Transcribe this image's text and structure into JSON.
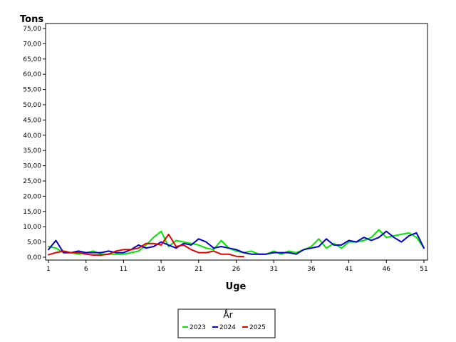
{
  "chart_data": {
    "type": "line",
    "ylabel": "Tons",
    "xlabel": "Uge",
    "ylim": [
      0,
      75
    ],
    "xlim": [
      1,
      51
    ],
    "yticks": [
      "0,00",
      "5,00",
      "10,00",
      "15,00",
      "20,00",
      "25,00",
      "30,00",
      "35,00",
      "40,00",
      "45,00",
      "50,00",
      "55,00",
      "60,00",
      "65,00",
      "70,00",
      "75,00"
    ],
    "xticks": [
      "1",
      "6",
      "11",
      "16",
      "21",
      "26",
      "31",
      "36",
      "41",
      "46",
      "51"
    ],
    "grid": false,
    "legend": {
      "title": "År",
      "placement": "bottom-center"
    },
    "series": [
      {
        "name": "2023",
        "color": "#00e600",
        "x": [
          1,
          2,
          3,
          4,
          5,
          6,
          7,
          8,
          9,
          10,
          11,
          12,
          13,
          14,
          15,
          16,
          17,
          18,
          19,
          20,
          21,
          22,
          23,
          24,
          25,
          26,
          27,
          28,
          29,
          30,
          31,
          32,
          33,
          34,
          35,
          36,
          37,
          38,
          39,
          40,
          41,
          42,
          43,
          44,
          45,
          46,
          47,
          48,
          49,
          50,
          51
        ],
        "y": [
          3.5,
          3.0,
          1.5,
          1.5,
          1.0,
          1.5,
          2.0,
          1.0,
          1.0,
          1.0,
          1.0,
          1.5,
          2.0,
          4.0,
          6.5,
          8.5,
          3.5,
          5.5,
          5.0,
          4.5,
          4.0,
          3.0,
          2.5,
          5.5,
          3.0,
          2.0,
          1.5,
          2.0,
          1.0,
          1.0,
          2.0,
          1.0,
          2.0,
          1.5,
          2.5,
          3.5,
          6.0,
          3.0,
          4.5,
          3.0,
          5.0,
          5.0,
          5.5,
          6.5,
          9.0,
          6.5,
          7.0,
          7.5,
          8.0,
          6.5,
          3.0
        ]
      },
      {
        "name": "2024",
        "color": "#0000c8",
        "x": [
          1,
          2,
          3,
          4,
          5,
          6,
          7,
          8,
          9,
          10,
          11,
          12,
          13,
          14,
          15,
          16,
          17,
          18,
          19,
          20,
          21,
          22,
          23,
          24,
          25,
          26,
          27,
          28,
          29,
          30,
          31,
          32,
          33,
          34,
          35,
          36,
          37,
          38,
          39,
          40,
          41,
          42,
          43,
          44,
          45,
          46,
          47,
          48,
          49,
          50,
          51
        ],
        "y": [
          2.5,
          5.5,
          1.5,
          1.5,
          2.0,
          1.5,
          1.5,
          1.5,
          2.0,
          1.5,
          1.5,
          2.5,
          4.0,
          3.0,
          3.5,
          5.0,
          4.0,
          3.0,
          4.5,
          4.0,
          6.0,
          5.0,
          3.0,
          3.5,
          3.0,
          2.5,
          1.5,
          1.0,
          1.0,
          1.0,
          1.5,
          1.5,
          1.5,
          1.0,
          2.5,
          3.0,
          3.5,
          6.0,
          4.0,
          4.0,
          5.5,
          5.0,
          6.5,
          5.5,
          6.5,
          8.5,
          6.5,
          5.0,
          7.0,
          8.0,
          3.0
        ]
      },
      {
        "name": "2025",
        "color": "#e60000",
        "x": [
          1,
          2,
          3,
          4,
          5,
          6,
          7,
          8,
          9,
          10,
          11,
          12,
          13,
          14,
          15,
          16,
          17,
          18,
          19,
          20,
          21,
          22,
          23,
          24,
          25,
          26,
          27
        ],
        "y": [
          0.8,
          1.5,
          2.0,
          1.5,
          1.5,
          1.0,
          0.7,
          0.7,
          1.0,
          2.0,
          2.5,
          2.5,
          3.0,
          4.5,
          4.5,
          4.0,
          7.5,
          3.5,
          4.0,
          2.5,
          1.5,
          1.5,
          2.0,
          1.0,
          1.0,
          0.3,
          0.2
        ]
      }
    ]
  }
}
